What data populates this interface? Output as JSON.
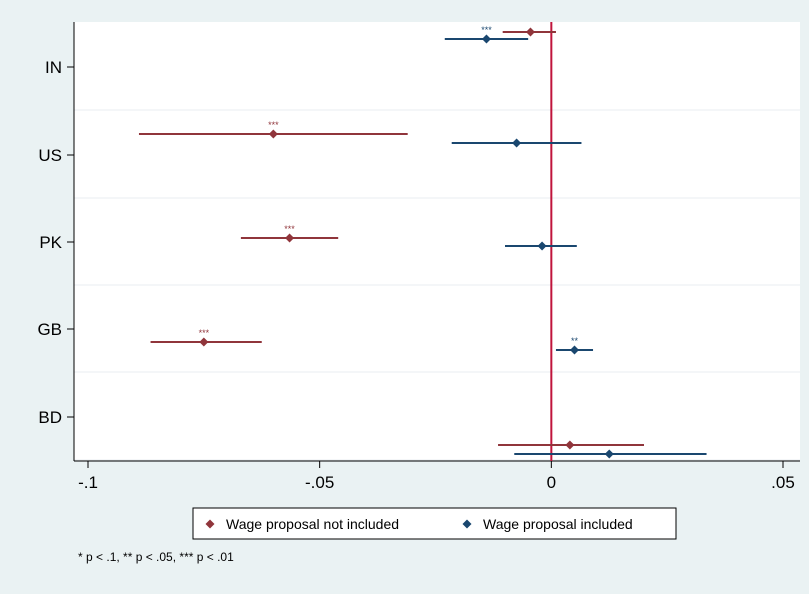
{
  "chart_data": {
    "type": "scatter",
    "subtype": "coefficient-plot-with-confidence-intervals",
    "orientation": "horizontal",
    "categories": [
      "IN",
      "US",
      "PK",
      "GB",
      "BD"
    ],
    "xlim": [
      -0.1,
      0.05
    ],
    "x_ticks": [
      -0.1,
      -0.05,
      0,
      0.05
    ],
    "x_tick_labels": [
      "-.1",
      "-.05",
      "0",
      ".05"
    ],
    "reference_line_x": 0,
    "reference_line_color": "#c0143c",
    "grid": "horizontal",
    "legend_position": "bottom",
    "series": [
      {
        "name": "Wage proposal not included",
        "color": "#90353b",
        "points": [
          {
            "category": "IN",
            "estimate": -0.0045,
            "ci_low": -0.0105,
            "ci_high": 0.001,
            "sig": ""
          },
          {
            "category": "US",
            "estimate": -0.06,
            "ci_low": -0.089,
            "ci_high": -0.031,
            "sig": "***"
          },
          {
            "category": "PK",
            "estimate": -0.0565,
            "ci_low": -0.067,
            "ci_high": -0.046,
            "sig": "***"
          },
          {
            "category": "GB",
            "estimate": -0.075,
            "ci_low": -0.0865,
            "ci_high": -0.0625,
            "sig": "***"
          },
          {
            "category": "BD",
            "estimate": 0.004,
            "ci_low": -0.0115,
            "ci_high": 0.02,
            "sig": ""
          }
        ]
      },
      {
        "name": "Wage proposal included",
        "color": "#1a476f",
        "points": [
          {
            "category": "IN",
            "estimate": -0.014,
            "ci_low": -0.023,
            "ci_high": -0.005,
            "sig": "***"
          },
          {
            "category": "US",
            "estimate": -0.0075,
            "ci_low": -0.0215,
            "ci_high": 0.0065,
            "sig": ""
          },
          {
            "category": "PK",
            "estimate": -0.002,
            "ci_low": -0.01,
            "ci_high": 0.0055,
            "sig": ""
          },
          {
            "category": "GB",
            "estimate": 0.005,
            "ci_low": 0.001,
            "ci_high": 0.009,
            "sig": "**"
          },
          {
            "category": "BD",
            "estimate": 0.0125,
            "ci_low": -0.008,
            "ci_high": 0.0335,
            "sig": ""
          }
        ]
      }
    ],
    "note": "* p < .1, ** p < .05, *** p < .01"
  }
}
